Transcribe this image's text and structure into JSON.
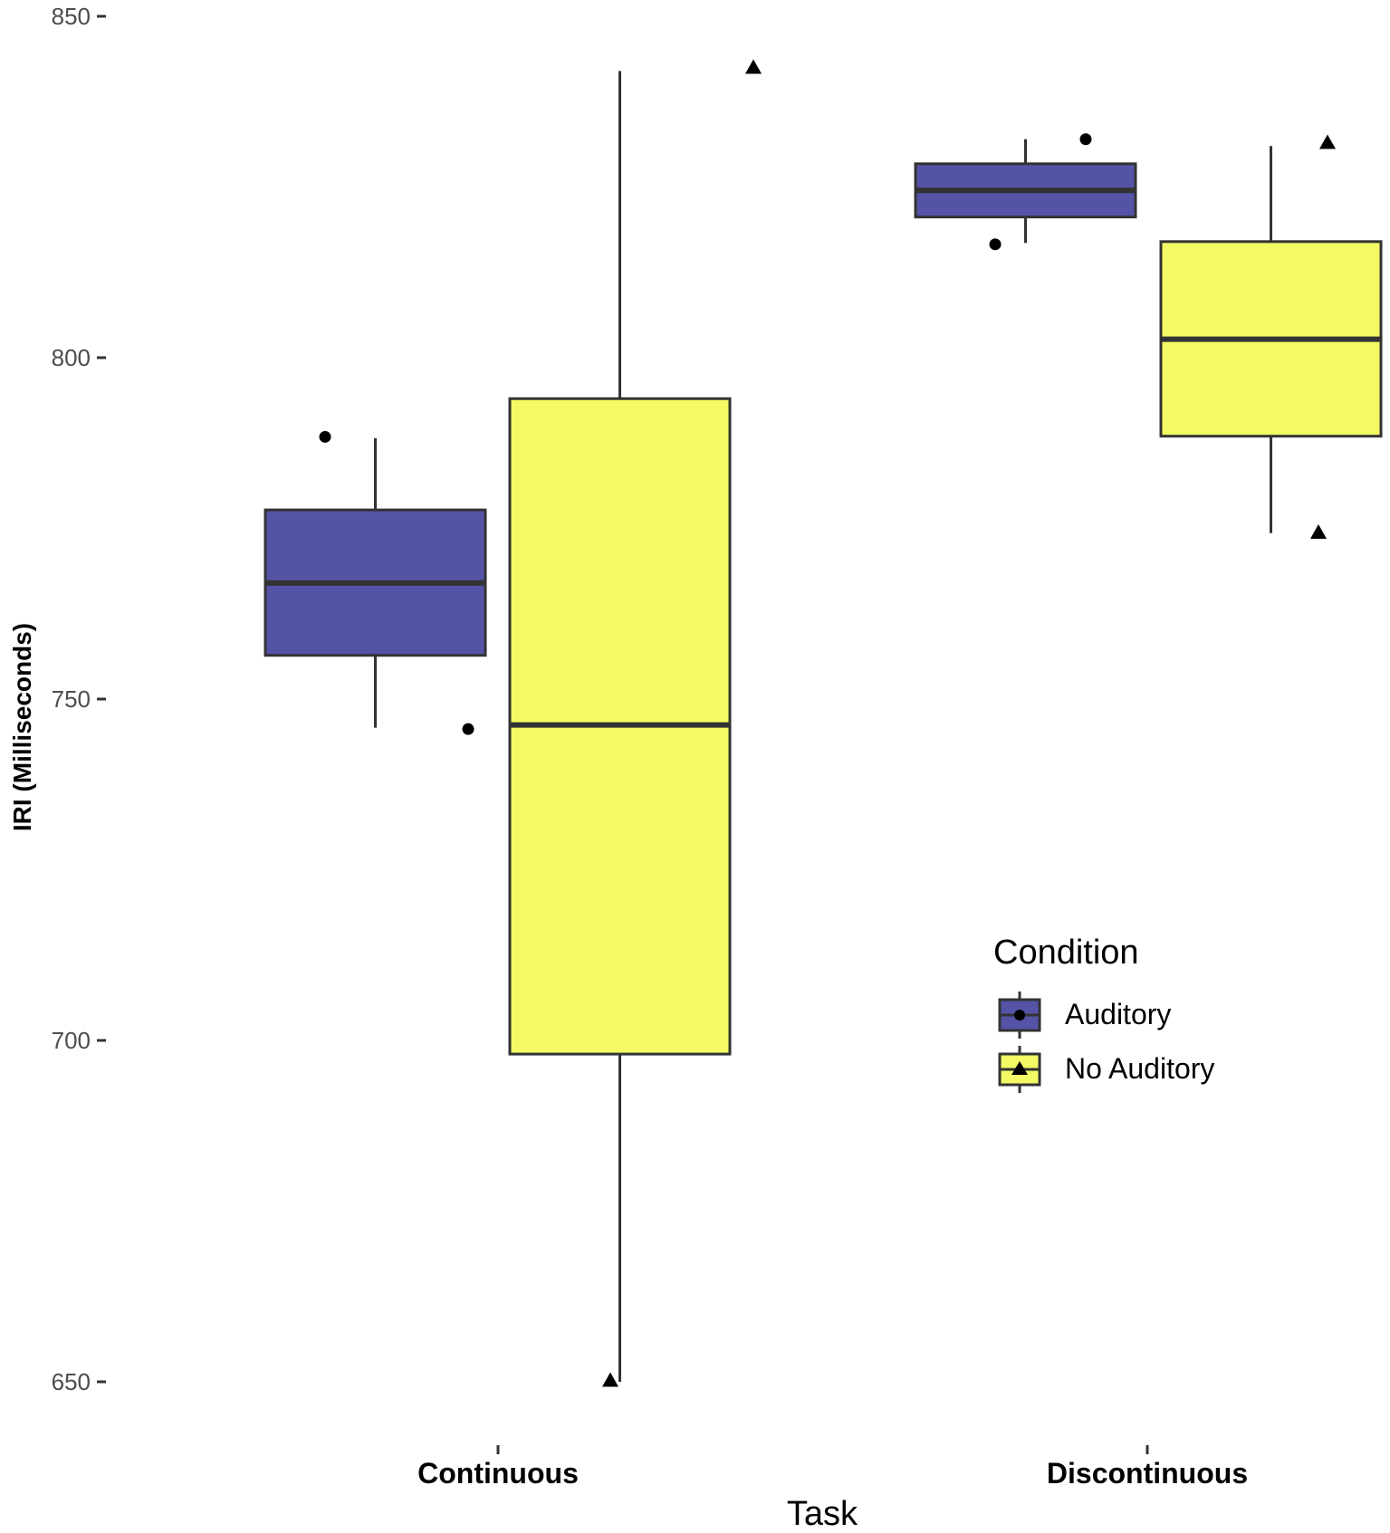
{
  "chart_data": {
    "type": "box",
    "title": "",
    "xlabel": "Task",
    "ylabel": "IRI (Milliseconds)",
    "ylim": [
      640,
      852
    ],
    "yticks": [
      650,
      700,
      750,
      800,
      850
    ],
    "categories": [
      "Continuous",
      "Discontinuous"
    ],
    "legend": {
      "title": "Condition",
      "position": "right-inside",
      "entries": [
        {
          "name": "Auditory",
          "color": "#5553a6",
          "shape": "circle"
        },
        {
          "name": "No Auditory",
          "color": "#f4fa63",
          "shape": "triangle"
        }
      ]
    },
    "series": [
      {
        "name": "Auditory",
        "color": "#5553a6",
        "shape": "circle",
        "boxes": [
          {
            "category": "Continuous",
            "whisker_low": 745.8,
            "q1": 756.4,
            "median": 767.0,
            "q3": 777.7,
            "whisker_high": 788.2,
            "points": [
              788.4,
              745.6
            ]
          },
          {
            "category": "Discontinuous",
            "whisker_low": 816.8,
            "q1": 820.6,
            "median": 824.5,
            "q3": 828.4,
            "whisker_high": 832.0,
            "points": [
              832.0,
              816.6
            ]
          }
        ]
      },
      {
        "name": "No Auditory",
        "color": "#f4fa63",
        "shape": "triangle",
        "boxes": [
          {
            "category": "Continuous",
            "whisker_low": 650.0,
            "q1": 698.0,
            "median": 746.2,
            "q3": 794.0,
            "whisker_high": 842.0,
            "points": [
              842.5,
              650.2
            ]
          },
          {
            "category": "Discontinuous",
            "whisker_low": 774.3,
            "q1": 788.5,
            "median": 802.7,
            "q3": 817.0,
            "whisker_high": 831.0,
            "points": [
              831.5,
              774.4
            ]
          }
        ]
      }
    ],
    "grid": false
  },
  "axes": {
    "y_ticks": [
      "850",
      "800",
      "750",
      "700",
      "650"
    ],
    "x_ticks": [
      "Continuous",
      "Discontinuous"
    ],
    "x_title": "Task",
    "y_title": "IRI (Milliseconds)"
  },
  "legend": {
    "title": "Condition",
    "items": [
      "Auditory",
      "No Auditory"
    ]
  },
  "colors": {
    "auditory": "#5553a6",
    "no_auditory": "#f4fa63",
    "outline": "#333333",
    "points": "#000000"
  }
}
